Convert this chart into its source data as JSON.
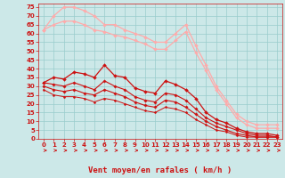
{
  "bg_color": "#cce8e8",
  "grid_color": "#99cccc",
  "xlabel": "Vent moyen/en rafales ( km/h )",
  "ylabel_ticks": [
    0,
    5,
    10,
    15,
    20,
    25,
    30,
    35,
    40,
    45,
    50,
    55,
    60,
    65,
    70,
    75
  ],
  "xlim": [
    0,
    23
  ],
  "ylim": [
    0,
    77
  ],
  "x_ticks": [
    0,
    1,
    2,
    3,
    4,
    5,
    6,
    7,
    8,
    9,
    10,
    11,
    12,
    13,
    14,
    15,
    16,
    17,
    18,
    19,
    20,
    21,
    22,
    23
  ],
  "series": [
    {
      "color": "#ffaaaa",
      "linewidth": 0.9,
      "markersize": 2.0,
      "marker": "D",
      "y": [
        62,
        70,
        75,
        75,
        73,
        70,
        65,
        65,
        62,
        60,
        58,
        55,
        55,
        60,
        65,
        53,
        42,
        30,
        22,
        14,
        10,
        8,
        8,
        8
      ]
    },
    {
      "color": "#ffaaaa",
      "linewidth": 0.9,
      "markersize": 2.0,
      "marker": "D",
      "y": [
        62,
        65,
        67,
        67,
        65,
        62,
        61,
        59,
        58,
        56,
        54,
        51,
        51,
        56,
        61,
        49,
        39,
        28,
        20,
        12,
        8,
        6,
        6,
        6
      ]
    },
    {
      "color": "#cc1111",
      "linewidth": 0.9,
      "markersize": 2.0,
      "marker": "D",
      "y": [
        32,
        35,
        34,
        38,
        37,
        35,
        42,
        36,
        35,
        29,
        27,
        26,
        33,
        31,
        28,
        23,
        15,
        11,
        9,
        6,
        4,
        3,
        3,
        2
      ]
    },
    {
      "color": "#cc1111",
      "linewidth": 0.8,
      "markersize": 1.8,
      "marker": "D",
      "y": [
        32,
        31,
        30,
        32,
        30,
        28,
        33,
        30,
        28,
        24,
        22,
        21,
        26,
        25,
        22,
        17,
        12,
        9,
        7,
        5,
        3,
        2,
        2,
        1
      ]
    },
    {
      "color": "#cc1111",
      "linewidth": 0.8,
      "markersize": 1.8,
      "marker": "D",
      "y": [
        30,
        28,
        27,
        28,
        26,
        25,
        28,
        26,
        24,
        21,
        19,
        18,
        22,
        21,
        18,
        14,
        10,
        7,
        5,
        3,
        2,
        1,
        1,
        1
      ]
    },
    {
      "color": "#cc1111",
      "linewidth": 0.7,
      "markersize": 1.5,
      "marker": "D",
      "y": [
        28,
        25,
        24,
        24,
        23,
        21,
        23,
        22,
        20,
        18,
        16,
        15,
        18,
        17,
        15,
        11,
        8,
        5,
        4,
        2,
        1,
        1,
        1,
        1
      ]
    }
  ],
  "arrow_color": "#cc1111",
  "label_color": "#cc1111",
  "tick_fontsize": 5,
  "xlabel_fontsize": 6.5
}
